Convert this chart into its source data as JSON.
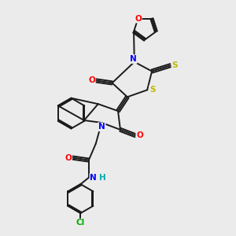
{
  "background_color": "#ebebeb",
  "bond_color": "#1a1a1a",
  "atom_colors": {
    "N": "#0000ff",
    "O": "#ff0000",
    "S": "#bbbb00",
    "Cl": "#00aa00",
    "H": "#00aaaa",
    "C": "#1a1a1a"
  },
  "bond_width": 1.4,
  "font_size": 7.5,
  "title": ""
}
